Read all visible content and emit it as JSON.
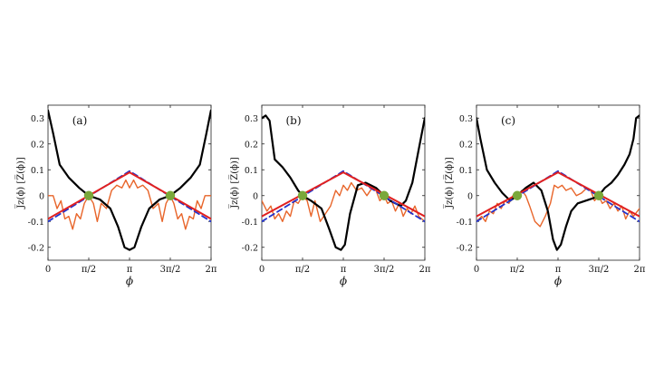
{
  "figure": {
    "xlabel": "ϕ",
    "ylabel": "J̅z(ϕ)  [Z̅(ϕ)]",
    "xticks": [
      "0",
      "π/2",
      "π",
      "3π/2",
      "2π"
    ],
    "yticks": [
      "0.3",
      "0.2",
      "0.1",
      "0",
      "-0.1",
      "-0.2"
    ],
    "colors": {
      "black": "#000000",
      "red": "#e02020",
      "blue": "#2233cc",
      "orange": "#e8652a",
      "green": "#7aa83a"
    }
  },
  "chart_data": [
    {
      "type": "line",
      "panel_label": "(a)",
      "xlabel": "ϕ",
      "ylabel": "J̅z(ϕ)  [Z̅(ϕ)]",
      "xlim": [
        0,
        6.2832
      ],
      "ylim": [
        -0.25,
        0.35
      ],
      "series": [
        {
          "style": "black",
          "x": [
            0,
            0.2,
            0.45,
            0.8,
            1.2,
            1.57,
            2.0,
            2.4,
            2.7,
            2.95,
            3.14,
            3.33,
            3.6,
            3.9,
            4.3,
            4.71,
            5.1,
            5.5,
            5.85,
            6.1,
            6.28
          ],
          "y": [
            0.33,
            0.24,
            0.12,
            0.07,
            0.03,
            0.0,
            -0.015,
            -0.05,
            -0.12,
            -0.2,
            -0.21,
            -0.2,
            -0.12,
            -0.05,
            -0.015,
            0.0,
            0.03,
            0.07,
            0.12,
            0.24,
            0.33
          ]
        },
        {
          "style": "red",
          "x": [
            0,
            3.14,
            6.28
          ],
          "y": [
            -0.09,
            0.09,
            -0.09
          ]
        },
        {
          "style": "blue-dashed",
          "x": [
            0,
            3.14,
            6.28
          ],
          "y": [
            -0.1,
            0.095,
            -0.1
          ]
        },
        {
          "style": "orange",
          "x": [
            0,
            0.2,
            0.35,
            0.5,
            0.65,
            0.8,
            0.95,
            1.1,
            1.25,
            1.4,
            1.57,
            1.75,
            1.9,
            2.05,
            2.25,
            2.45,
            2.65,
            2.85,
            3.0,
            3.14,
            3.3,
            3.45,
            3.65,
            3.85,
            4.05,
            4.25,
            4.4,
            4.55,
            4.71,
            4.85,
            5.0,
            5.15,
            5.3,
            5.45,
            5.6,
            5.75,
            5.9,
            6.05,
            6.28
          ],
          "y": [
            0.0,
            0.0,
            -0.05,
            -0.02,
            -0.09,
            -0.08,
            -0.13,
            -0.07,
            -0.09,
            -0.03,
            0.0,
            -0.03,
            -0.1,
            -0.03,
            -0.05,
            0.02,
            0.04,
            0.03,
            0.06,
            0.03,
            0.06,
            0.03,
            0.04,
            0.02,
            -0.05,
            -0.03,
            -0.1,
            -0.03,
            0.0,
            -0.03,
            -0.09,
            -0.07,
            -0.13,
            -0.08,
            -0.09,
            -0.02,
            -0.05,
            0.0,
            0.0
          ]
        }
      ],
      "markers": {
        "x": [
          1.5708,
          4.7124
        ],
        "y": [
          0,
          0
        ]
      }
    },
    {
      "type": "line",
      "panel_label": "(b)",
      "xlabel": "ϕ",
      "ylabel": "J̅z(ϕ)  [Z̅(ϕ)]",
      "xlim": [
        0,
        6.2832
      ],
      "ylim": [
        -0.25,
        0.35
      ],
      "series": [
        {
          "style": "black",
          "x": [
            0,
            0.15,
            0.3,
            0.5,
            0.8,
            1.1,
            1.4,
            1.57,
            1.9,
            2.3,
            2.6,
            2.85,
            3.05,
            3.2,
            3.4,
            3.7,
            4.0,
            4.4,
            4.71,
            4.95,
            5.15,
            5.35,
            5.55,
            5.8,
            6.05,
            6.28
          ],
          "y": [
            0.3,
            0.31,
            0.29,
            0.14,
            0.11,
            0.07,
            0.02,
            0.0,
            -0.02,
            -0.05,
            -0.13,
            -0.2,
            -0.21,
            -0.19,
            -0.07,
            0.04,
            0.05,
            0.03,
            0.0,
            -0.02,
            -0.03,
            -0.04,
            -0.02,
            0.05,
            0.18,
            0.3
          ]
        },
        {
          "style": "red",
          "x": [
            0,
            3.14,
            6.28
          ],
          "y": [
            -0.08,
            0.09,
            -0.08
          ]
        },
        {
          "style": "blue-dashed",
          "x": [
            0,
            3.14,
            6.28
          ],
          "y": [
            -0.1,
            0.095,
            -0.1
          ]
        },
        {
          "style": "orange",
          "x": [
            0,
            0.2,
            0.35,
            0.5,
            0.65,
            0.8,
            0.95,
            1.1,
            1.25,
            1.4,
            1.57,
            1.75,
            1.9,
            2.05,
            2.25,
            2.45,
            2.65,
            2.85,
            3.0,
            3.14,
            3.3,
            3.45,
            3.65,
            3.85,
            4.05,
            4.25,
            4.4,
            4.55,
            4.71,
            4.85,
            5.0,
            5.15,
            5.3,
            5.45,
            5.6,
            5.75,
            5.9,
            6.05,
            6.28
          ],
          "y": [
            -0.02,
            -0.06,
            -0.04,
            -0.09,
            -0.07,
            -0.1,
            -0.06,
            -0.08,
            -0.02,
            -0.03,
            0.0,
            -0.02,
            -0.08,
            -0.02,
            -0.1,
            -0.07,
            -0.04,
            0.02,
            0.0,
            0.04,
            0.02,
            0.05,
            0.02,
            0.03,
            0.0,
            0.03,
            0.02,
            -0.02,
            0.0,
            -0.03,
            -0.02,
            -0.06,
            -0.03,
            -0.08,
            -0.05,
            -0.07,
            -0.04,
            -0.08,
            -0.1
          ]
        }
      ],
      "markers": {
        "x": [
          1.5708,
          4.7124
        ],
        "y": [
          0,
          0
        ]
      }
    },
    {
      "type": "line",
      "panel_label": "(c)",
      "xlabel": "ϕ",
      "ylabel": "J̅z(ϕ)  [Z̅(ϕ)]",
      "xlim": [
        0,
        6.2832
      ],
      "ylim": [
        -0.25,
        0.35
      ],
      "series": [
        {
          "style": "black",
          "x": [
            0,
            0.15,
            0.4,
            0.7,
            1.0,
            1.3,
            1.57,
            1.9,
            2.2,
            2.5,
            2.75,
            2.95,
            3.1,
            3.25,
            3.45,
            3.65,
            3.9,
            4.2,
            4.5,
            4.71,
            4.95,
            5.2,
            5.45,
            5.7,
            5.9,
            6.05,
            6.15,
            6.28
          ],
          "y": [
            0.3,
            0.22,
            0.1,
            0.05,
            0.01,
            -0.02,
            0.0,
            0.03,
            0.05,
            0.02,
            -0.06,
            -0.17,
            -0.21,
            -0.19,
            -0.12,
            -0.06,
            -0.03,
            -0.02,
            -0.01,
            0.0,
            0.03,
            0.05,
            0.08,
            0.12,
            0.16,
            0.22,
            0.3,
            0.31
          ]
        },
        {
          "style": "red",
          "x": [
            0,
            3.14,
            6.28
          ],
          "y": [
            -0.08,
            0.09,
            -0.08
          ]
        },
        {
          "style": "blue-dashed",
          "x": [
            0,
            3.14,
            6.28
          ],
          "y": [
            -0.1,
            0.095,
            -0.1
          ]
        },
        {
          "style": "orange",
          "x": [
            0,
            0.2,
            0.35,
            0.5,
            0.65,
            0.8,
            0.95,
            1.1,
            1.25,
            1.4,
            1.57,
            1.75,
            1.9,
            2.05,
            2.25,
            2.45,
            2.65,
            2.85,
            3.0,
            3.14,
            3.3,
            3.45,
            3.65,
            3.85,
            4.05,
            4.25,
            4.4,
            4.55,
            4.71,
            4.85,
            5.0,
            5.15,
            5.3,
            5.45,
            5.6,
            5.75,
            5.9,
            6.05,
            6.28
          ],
          "y": [
            -0.1,
            -0.08,
            -0.1,
            -0.06,
            -0.07,
            -0.03,
            -0.05,
            -0.02,
            -0.03,
            0.0,
            0.0,
            0.02,
            0.0,
            -0.04,
            -0.1,
            -0.12,
            -0.08,
            -0.03,
            0.04,
            0.03,
            0.04,
            0.02,
            0.03,
            0.0,
            0.01,
            0.03,
            0.02,
            -0.02,
            0.0,
            -0.03,
            -0.02,
            -0.05,
            -0.03,
            -0.06,
            -0.04,
            -0.09,
            -0.06,
            -0.08,
            -0.05
          ]
        }
      ],
      "markers": {
        "x": [
          1.5708,
          4.7124
        ],
        "y": [
          0,
          0
        ]
      }
    }
  ]
}
